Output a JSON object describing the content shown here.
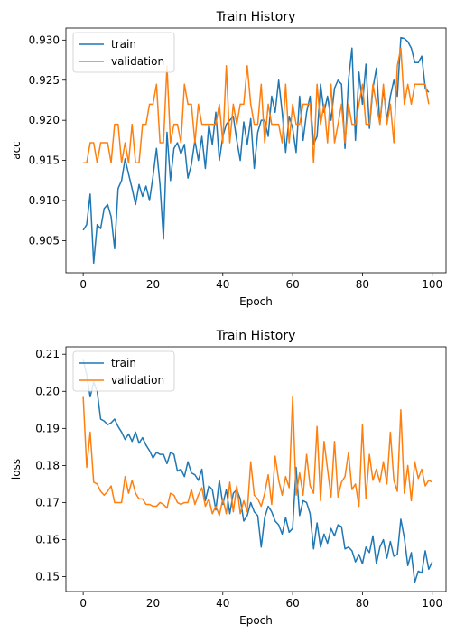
{
  "chart_data": [
    {
      "type": "line",
      "title": "Train History",
      "xlabel": "Epoch",
      "ylabel": "acc",
      "xlim": [
        -4.95,
        103.95
      ],
      "ylim": [
        0.901,
        0.9315
      ],
      "xticks": [
        0,
        20,
        40,
        60,
        80,
        100
      ],
      "xtick_labels": [
        "0",
        "20",
        "40",
        "60",
        "80",
        "100"
      ],
      "yticks": [
        0.905,
        0.91,
        0.915,
        0.92,
        0.925,
        0.93
      ],
      "ytick_labels": [
        "0.905",
        "0.910",
        "0.915",
        "0.920",
        "0.925",
        "0.930"
      ],
      "legend_position": "upper-left",
      "grid": false,
      "series": [
        {
          "name": "train",
          "color": "#1f77b4",
          "values": [
            0.9063,
            0.907,
            0.9108,
            0.9022,
            0.907,
            0.9065,
            0.909,
            0.9095,
            0.908,
            0.904,
            0.9115,
            0.9125,
            0.9152,
            0.9133,
            0.9115,
            0.9095,
            0.912,
            0.9105,
            0.9118,
            0.91,
            0.913,
            0.9165,
            0.912,
            0.9052,
            0.9185,
            0.9125,
            0.9165,
            0.9172,
            0.9158,
            0.917,
            0.9128,
            0.9145,
            0.9175,
            0.915,
            0.918,
            0.914,
            0.9195,
            0.917,
            0.921,
            0.915,
            0.918,
            0.9195,
            0.92,
            0.9205,
            0.9175,
            0.915,
            0.9198,
            0.917,
            0.9202,
            0.914,
            0.9185,
            0.92,
            0.92,
            0.918,
            0.923,
            0.921,
            0.925,
            0.921,
            0.916,
            0.9205,
            0.919,
            0.916,
            0.923,
            0.9175,
            0.921,
            0.923,
            0.917,
            0.918,
            0.9245,
            0.921,
            0.923,
            0.92,
            0.924,
            0.925,
            0.9245,
            0.9165,
            0.925,
            0.929,
            0.9175,
            0.926,
            0.922,
            0.927,
            0.919,
            0.924,
            0.9265,
            0.9195,
            0.924,
            0.92,
            0.923,
            0.925,
            0.923,
            0.9303,
            0.9302,
            0.9298,
            0.929,
            0.9272,
            0.9272,
            0.928,
            0.924,
            0.9235
          ]
        },
        {
          "name": "validation",
          "color": "#ff7f0e",
          "values": [
            0.9147,
            0.9147,
            0.9172,
            0.9172,
            0.9147,
            0.9172,
            0.9172,
            0.9172,
            0.9147,
            0.9195,
            0.9195,
            0.9147,
            0.9172,
            0.9147,
            0.9195,
            0.9147,
            0.9147,
            0.9195,
            0.9195,
            0.922,
            0.922,
            0.9245,
            0.9172,
            0.9172,
            0.9268,
            0.9172,
            0.9195,
            0.9195,
            0.9172,
            0.9245,
            0.922,
            0.922,
            0.9172,
            0.922,
            0.9195,
            0.9195,
            0.9195,
            0.9195,
            0.9195,
            0.922,
            0.9172,
            0.9268,
            0.9172,
            0.922,
            0.9195,
            0.922,
            0.922,
            0.9268,
            0.922,
            0.9195,
            0.9195,
            0.9245,
            0.9172,
            0.922,
            0.9195,
            0.9195,
            0.9195,
            0.9172,
            0.9245,
            0.9172,
            0.922,
            0.9195,
            0.9195,
            0.922,
            0.922,
            0.922,
            0.9147,
            0.9245,
            0.9195,
            0.922,
            0.9172,
            0.9245,
            0.9172,
            0.9195,
            0.922,
            0.9172,
            0.922,
            0.9195,
            0.9195,
            0.922,
            0.9245,
            0.9195,
            0.9195,
            0.9245,
            0.922,
            0.9195,
            0.9245,
            0.9195,
            0.922,
            0.9172,
            0.9268,
            0.929,
            0.922,
            0.9245,
            0.922,
            0.9245,
            0.9245,
            0.9245,
            0.9245,
            0.922
          ]
        }
      ]
    },
    {
      "type": "line",
      "title": "Train History",
      "xlabel": "Epoch",
      "ylabel": "loss",
      "xlim": [
        -4.95,
        103.95
      ],
      "ylim": [
        0.146,
        0.212
      ],
      "xticks": [
        0,
        20,
        40,
        60,
        80,
        100
      ],
      "xtick_labels": [
        "0",
        "20",
        "40",
        "60",
        "80",
        "100"
      ],
      "yticks": [
        0.15,
        0.16,
        0.17,
        0.18,
        0.19,
        0.2,
        0.21
      ],
      "ytick_labels": [
        "0.15",
        "0.16",
        "0.17",
        "0.18",
        "0.19",
        "0.20",
        "0.21"
      ],
      "legend_position": "upper-left",
      "grid": false,
      "series": [
        {
          "name": "train",
          "color": "#1f77b4",
          "values": [
            0.2085,
            0.2045,
            0.1985,
            0.2025,
            0.2,
            0.1925,
            0.192,
            0.191,
            0.1915,
            0.1925,
            0.1905,
            0.189,
            0.187,
            0.1885,
            0.1865,
            0.189,
            0.186,
            0.1875,
            0.1855,
            0.184,
            0.182,
            0.1835,
            0.183,
            0.183,
            0.1805,
            0.1835,
            0.183,
            0.1785,
            0.179,
            0.177,
            0.181,
            0.178,
            0.1775,
            0.176,
            0.179,
            0.1705,
            0.1745,
            0.1735,
            0.168,
            0.176,
            0.1695,
            0.1735,
            0.167,
            0.1725,
            0.1735,
            0.171,
            0.165,
            0.1665,
            0.17,
            0.1675,
            0.1665,
            0.158,
            0.166,
            0.169,
            0.1675,
            0.165,
            0.164,
            0.1615,
            0.166,
            0.162,
            0.163,
            0.1795,
            0.1665,
            0.1705,
            0.17,
            0.167,
            0.1575,
            0.1645,
            0.158,
            0.1615,
            0.159,
            0.163,
            0.161,
            0.164,
            0.1635,
            0.1575,
            0.158,
            0.157,
            0.154,
            0.156,
            0.1535,
            0.158,
            0.1565,
            0.161,
            0.1535,
            0.158,
            0.16,
            0.155,
            0.1595,
            0.1555,
            0.156,
            0.1655,
            0.1605,
            0.153,
            0.1565,
            0.1485,
            0.1515,
            0.151,
            0.157,
            0.152,
            0.154
          ]
        },
        {
          "name": "validation",
          "color": "#ff7f0e",
          "values": [
            0.1985,
            0.1795,
            0.189,
            0.1755,
            0.175,
            0.173,
            0.172,
            0.173,
            0.1745,
            0.17,
            0.17,
            0.17,
            0.177,
            0.1725,
            0.176,
            0.1725,
            0.171,
            0.171,
            0.1695,
            0.1695,
            0.169,
            0.169,
            0.17,
            0.1695,
            0.1685,
            0.1725,
            0.172,
            0.17,
            0.1695,
            0.17,
            0.17,
            0.1735,
            0.1695,
            0.172,
            0.174,
            0.169,
            0.171,
            0.167,
            0.169,
            0.1665,
            0.171,
            0.167,
            0.1755,
            0.1675,
            0.1745,
            0.167,
            0.1705,
            0.1675,
            0.181,
            0.172,
            0.171,
            0.169,
            0.1725,
            0.1775,
            0.1695,
            0.1825,
            0.176,
            0.172,
            0.177,
            0.174,
            0.1985,
            0.172,
            0.178,
            0.172,
            0.183,
            0.1745,
            0.1725,
            0.1905,
            0.1705,
            0.1865,
            0.179,
            0.1715,
            0.1865,
            0.1715,
            0.1755,
            0.177,
            0.1835,
            0.1735,
            0.175,
            0.169,
            0.191,
            0.171,
            0.183,
            0.176,
            0.179,
            0.1755,
            0.181,
            0.175,
            0.189,
            0.176,
            0.173,
            0.195,
            0.1725,
            0.18,
            0.1705,
            0.181,
            0.1765,
            0.179,
            0.1745,
            0.176,
            0.1755
          ]
        }
      ]
    }
  ]
}
